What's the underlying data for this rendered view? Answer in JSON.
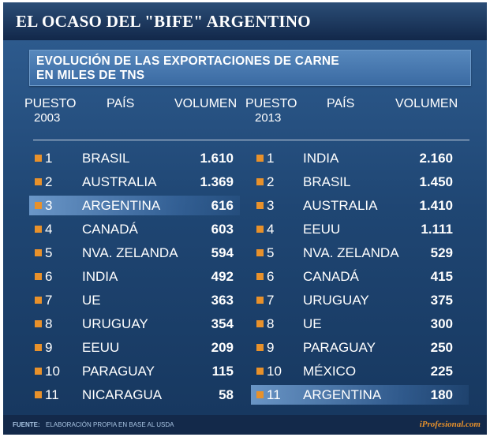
{
  "title": "EL OCASO DEL \"BIFE\" ARGENTINO",
  "subtitle": [
    "EVOLUCIÓN DE LAS EXPORTACIONES DE CARNE",
    "EN MILES DE TNS"
  ],
  "colors": {
    "bullet": "#e8912b",
    "highlight": "#5c8fc6",
    "background": "#1f4673"
  },
  "chart_data": {
    "type": "table",
    "title": "EL OCASO DEL \"BIFE\" ARGENTINO",
    "subtitle": "EVOLUCIÓN DE LAS EXPORTACIONES DE CARNE EN MILES DE TNS",
    "tables": [
      {
        "headers": {
          "rank": "PUESTO",
          "year": "2003",
          "country": "PAÍS",
          "volume": "VOLUMEN"
        },
        "highlight_row": 2,
        "rows": [
          {
            "rank": "1",
            "country": "BRASIL",
            "volume": "1.610"
          },
          {
            "rank": "2",
            "country": "AUSTRALIA",
            "volume": "1.369"
          },
          {
            "rank": "3",
            "country": "ARGENTINA",
            "volume": "616"
          },
          {
            "rank": "4",
            "country": "CANADÁ",
            "volume": "603"
          },
          {
            "rank": "5",
            "country": "NVA. ZELANDA",
            "volume": "594"
          },
          {
            "rank": "6",
            "country": "INDIA",
            "volume": "492"
          },
          {
            "rank": "7",
            "country": "UE",
            "volume": "363"
          },
          {
            "rank": "8",
            "country": "URUGUAY",
            "volume": "354"
          },
          {
            "rank": "9",
            "country": "EEUU",
            "volume": "209"
          },
          {
            "rank": "10",
            "country": "PARAGUAY",
            "volume": "115"
          },
          {
            "rank": "11",
            "country": "NICARAGUA",
            "volume": "58"
          }
        ]
      },
      {
        "headers": {
          "rank": "PUESTO",
          "year": "2013",
          "country": "PAÍS",
          "volume": "VOLUMEN"
        },
        "highlight_row": 10,
        "rows": [
          {
            "rank": "1",
            "country": "INDIA",
            "volume": "2.160"
          },
          {
            "rank": "2",
            "country": "BRASIL",
            "volume": "1.450"
          },
          {
            "rank": "3",
            "country": "AUSTRALIA",
            "volume": "1.410"
          },
          {
            "rank": "4",
            "country": "EEUU",
            "volume": "1.111"
          },
          {
            "rank": "5",
            "country": "NVA. ZELANDA",
            "volume": "529"
          },
          {
            "rank": "6",
            "country": "CANADÁ",
            "volume": "415"
          },
          {
            "rank": "7",
            "country": "URUGUAY",
            "volume": "375"
          },
          {
            "rank": "8",
            "country": "UE",
            "volume": "300"
          },
          {
            "rank": "9",
            "country": "PARAGUAY",
            "volume": "250"
          },
          {
            "rank": "10",
            "country": "MÉXICO",
            "volume": "225"
          },
          {
            "rank": "11",
            "country": "ARGENTINA",
            "volume": "180"
          }
        ]
      }
    ]
  },
  "footer": {
    "source_label": "FUENTE:",
    "source_text": "ELABORACIÓN PROPIA EN BASE AL USDA",
    "brand": "iProfesional.com"
  }
}
